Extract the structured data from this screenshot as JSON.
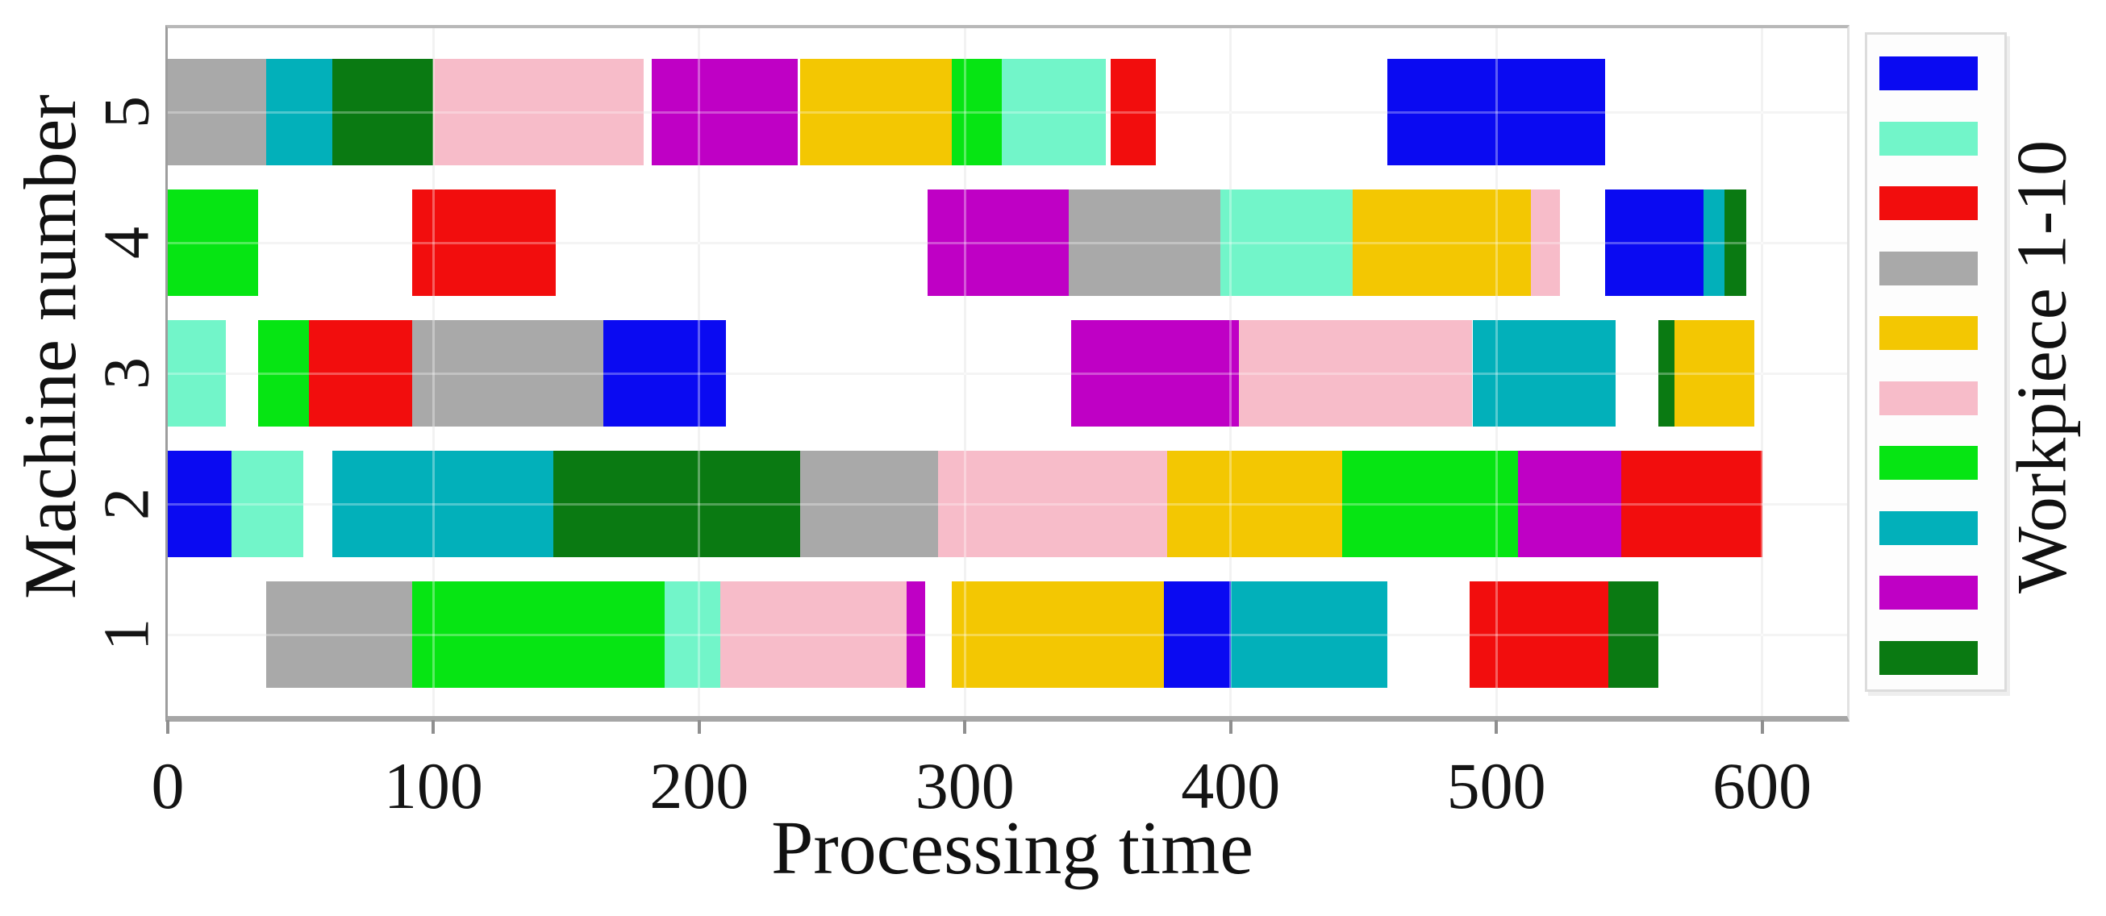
{
  "chart_data": {
    "type": "bar",
    "subtype": "gantt",
    "title": "",
    "xlabel": "Processing time",
    "ylabel": "Machine number",
    "xlim": [
      0,
      632
    ],
    "x_ticks": [
      0,
      100,
      200,
      300,
      400,
      500,
      600
    ],
    "grid": true,
    "legend": {
      "title": "Workpiece 1-10",
      "position": "right",
      "entries": [
        {
          "workpiece": 1,
          "color": "#0a0af2"
        },
        {
          "workpiece": 2,
          "color": "#72f5c9"
        },
        {
          "workpiece": 3,
          "color": "#f20d0d"
        },
        {
          "workpiece": 4,
          "color": "#a9a9a9"
        },
        {
          "workpiece": 5,
          "color": "#f3c702"
        },
        {
          "workpiece": 6,
          "color": "#f7bcc9"
        },
        {
          "workpiece": 7,
          "color": "#06e513"
        },
        {
          "workpiece": 8,
          "color": "#02b0ba"
        },
        {
          "workpiece": 9,
          "color": "#bf00c5"
        },
        {
          "workpiece": 10,
          "color": "#0a7a12"
        }
      ]
    },
    "workpiece_colors": {
      "1": "#0a0af2",
      "2": "#72f5c9",
      "3": "#f20d0d",
      "4": "#a9a9a9",
      "5": "#f3c702",
      "6": "#f7bcc9",
      "7": "#06e513",
      "8": "#02b0ba",
      "9": "#bf00c5",
      "10": "#0a7a12"
    },
    "machines": [
      {
        "machine": 5,
        "label": "5",
        "segments": [
          {
            "workpiece": 4,
            "start": 0,
            "end": 37
          },
          {
            "workpiece": 8,
            "start": 37,
            "end": 62
          },
          {
            "workpiece": 10,
            "start": 62,
            "end": 100
          },
          {
            "workpiece": 6,
            "start": 100,
            "end": 179
          },
          {
            "workpiece": 9,
            "start": 182,
            "end": 237
          },
          {
            "workpiece": 5,
            "start": 238,
            "end": 295
          },
          {
            "workpiece": 7,
            "start": 295,
            "end": 314
          },
          {
            "workpiece": 2,
            "start": 314,
            "end": 353
          },
          {
            "workpiece": 3,
            "start": 355,
            "end": 372
          },
          {
            "workpiece": 1,
            "start": 459,
            "end": 541
          }
        ]
      },
      {
        "machine": 4,
        "label": "4",
        "segments": [
          {
            "workpiece": 7,
            "start": 0,
            "end": 34
          },
          {
            "workpiece": 3,
            "start": 92,
            "end": 146
          },
          {
            "workpiece": 9,
            "start": 286,
            "end": 339
          },
          {
            "workpiece": 4,
            "start": 339,
            "end": 396
          },
          {
            "workpiece": 2,
            "start": 396,
            "end": 446
          },
          {
            "workpiece": 5,
            "start": 446,
            "end": 513
          },
          {
            "workpiece": 6,
            "start": 513,
            "end": 524
          },
          {
            "workpiece": 1,
            "start": 541,
            "end": 578
          },
          {
            "workpiece": 8,
            "start": 578,
            "end": 586
          },
          {
            "workpiece": 10,
            "start": 586,
            "end": 594
          }
        ]
      },
      {
        "machine": 3,
        "label": "3",
        "segments": [
          {
            "workpiece": 2,
            "start": 0,
            "end": 22
          },
          {
            "workpiece": 7,
            "start": 34,
            "end": 53
          },
          {
            "workpiece": 3,
            "start": 53,
            "end": 92
          },
          {
            "workpiece": 4,
            "start": 92,
            "end": 164
          },
          {
            "workpiece": 1,
            "start": 164,
            "end": 210
          },
          {
            "workpiece": 9,
            "start": 340,
            "end": 403
          },
          {
            "workpiece": 6,
            "start": 403,
            "end": 491
          },
          {
            "workpiece": 8,
            "start": 491,
            "end": 545
          },
          {
            "workpiece": 10,
            "start": 561,
            "end": 567
          },
          {
            "workpiece": 5,
            "start": 567,
            "end": 597
          }
        ]
      },
      {
        "machine": 2,
        "label": "2",
        "segments": [
          {
            "workpiece": 1,
            "start": 0,
            "end": 24
          },
          {
            "workpiece": 2,
            "start": 24,
            "end": 51
          },
          {
            "workpiece": 8,
            "start": 62,
            "end": 145
          },
          {
            "workpiece": 10,
            "start": 145,
            "end": 238
          },
          {
            "workpiece": 4,
            "start": 238,
            "end": 290
          },
          {
            "workpiece": 6,
            "start": 290,
            "end": 376
          },
          {
            "workpiece": 5,
            "start": 376,
            "end": 442
          },
          {
            "workpiece": 7,
            "start": 442,
            "end": 508
          },
          {
            "workpiece": 9,
            "start": 508,
            "end": 547
          },
          {
            "workpiece": 3,
            "start": 547,
            "end": 600
          }
        ]
      },
      {
        "machine": 1,
        "label": "1",
        "segments": [
          {
            "workpiece": 4,
            "start": 37,
            "end": 92
          },
          {
            "workpiece": 7,
            "start": 92,
            "end": 187
          },
          {
            "workpiece": 2,
            "start": 187,
            "end": 208
          },
          {
            "workpiece": 6,
            "start": 208,
            "end": 278
          },
          {
            "workpiece": 9,
            "start": 278,
            "end": 285
          },
          {
            "workpiece": 5,
            "start": 295,
            "end": 375
          },
          {
            "workpiece": 1,
            "start": 375,
            "end": 400
          },
          {
            "workpiece": 8,
            "start": 400,
            "end": 459
          },
          {
            "workpiece": 3,
            "start": 490,
            "end": 542
          },
          {
            "workpiece": 10,
            "start": 542,
            "end": 561
          }
        ]
      }
    ]
  }
}
